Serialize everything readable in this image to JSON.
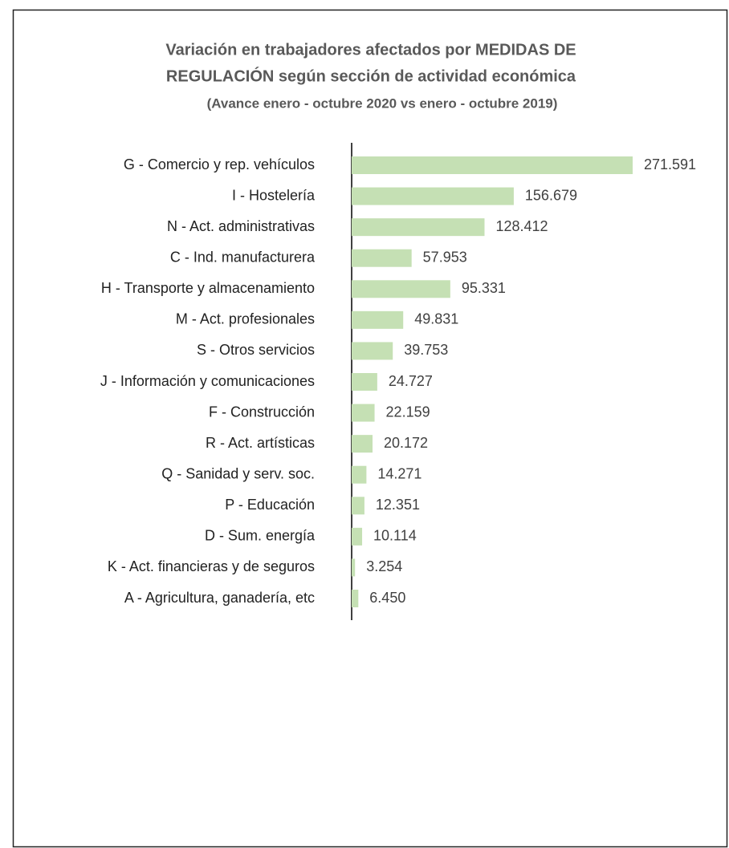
{
  "chart_data": {
    "type": "barh",
    "title": [
      "Variación en trabajadores afectados por MEDIDAS DE",
      "REGULACIÓN según sección de actividad económica"
    ],
    "subtitle": "(Avance enero - octubre 2020 vs enero - octubre 2019)",
    "categories": [
      "G - Comercio y rep. vehículos",
      "I - Hostelería",
      "N - Act. administrativas",
      "C - Ind. manufacturera",
      "H - Transporte y almacenamiento",
      "M - Act. profesionales",
      "S - Otros servicios",
      "J - Información y comunicaciones",
      "F - Construcción",
      "R - Act. artísticas",
      "Q - Sanidad y serv. soc.",
      "P - Educación",
      "D - Sum. energía",
      "K - Act. financieras y de seguros",
      "A - Agricultura, ganadería, etc"
    ],
    "values": [
      271591,
      156679,
      128412,
      57953,
      95331,
      49831,
      39753,
      24727,
      22159,
      20172,
      14271,
      12351,
      10114,
      3254,
      6450
    ],
    "value_labels": [
      "271.591",
      "156.679",
      "128.412",
      "57.953",
      "95.331",
      "49.831",
      "39.753",
      "24.727",
      "22.159",
      "20.172",
      "14.271",
      "12.351",
      "10.114",
      "3.254",
      "6.450"
    ],
    "color": "#c5e0b4"
  }
}
